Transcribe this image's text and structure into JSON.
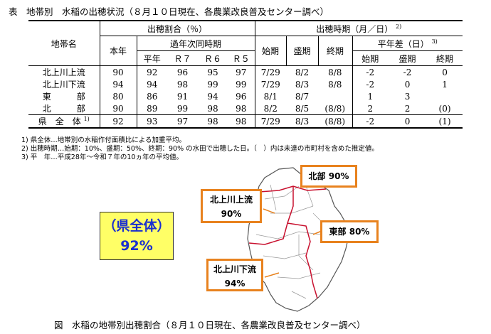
{
  "title": "表　地帯別　水稲の出穂状況（８月１０日現在、各農業改良普及センター調べ）",
  "table": {
    "headers": {
      "region": "地帯名",
      "ratio": "出穂割合（％）",
      "heading_time": "出穂時期（月／日）",
      "heading_time_note": "2)",
      "this_year": "本年",
      "past": "過年次同時期",
      "normal": "平年",
      "r7": "Ｒ７",
      "r6": "Ｒ６",
      "r5": "Ｒ５",
      "start": "始期",
      "peak": "盛期",
      "end": "終期",
      "diff": "平年差（日）",
      "diff_note": "3)",
      "diff_start": "始期",
      "diff_peak": "盛期",
      "diff_end": "終期"
    },
    "rows": [
      [
        "北上川上流",
        "90",
        "92",
        "96",
        "95",
        "97",
        "7/29",
        "8/2",
        "8/8",
        "-2",
        "-2",
        "0"
      ],
      [
        "北上川下流",
        "94",
        "94",
        "98",
        "99",
        "99",
        "7/29",
        "8/3",
        "8/8",
        "-2",
        "0",
        "1"
      ],
      [
        "東　　　部",
        "80",
        "86",
        "91",
        "94",
        "96",
        "8/1",
        "8/7",
        null,
        "1",
        "3",
        null
      ],
      [
        "北　　　部",
        "90",
        "89",
        "99",
        "98",
        "98",
        "8/2",
        "8/5",
        "(8/8)",
        "2",
        "2",
        "(0)"
      ]
    ],
    "total": {
      "label": "県　全　体",
      "note": "1)",
      "cells": [
        "92",
        "93",
        "97",
        "98",
        "98",
        "7/29",
        "8/3",
        "(8/8)",
        "-2",
        "0",
        "(1)"
      ]
    }
  },
  "footnotes": [
    "1) 県全体…地帯別の水稲作付面積比による加重平均。",
    "2) 出穂時期…始期：10%、盛期：50%、終期：90% の水田で出穂した日。（　）内は未達の市町村を含めた推定値。",
    "3) 平　年…平成28年～令和７年の10ヵ年の平均値。"
  ],
  "figure": {
    "overall": {
      "label": "（県全体）",
      "value": "92%"
    },
    "callouts": [
      {
        "label": "北部",
        "value": "90%"
      },
      {
        "label": "北上川上流",
        "value": "90%"
      },
      {
        "label": "東部",
        "value": "80%"
      },
      {
        "label": "北上川下流",
        "value": "94%"
      }
    ],
    "caption": "図　水稲の地帯別出穂割合（８月１０日現在、各農業改良普及センター調べ）"
  }
}
